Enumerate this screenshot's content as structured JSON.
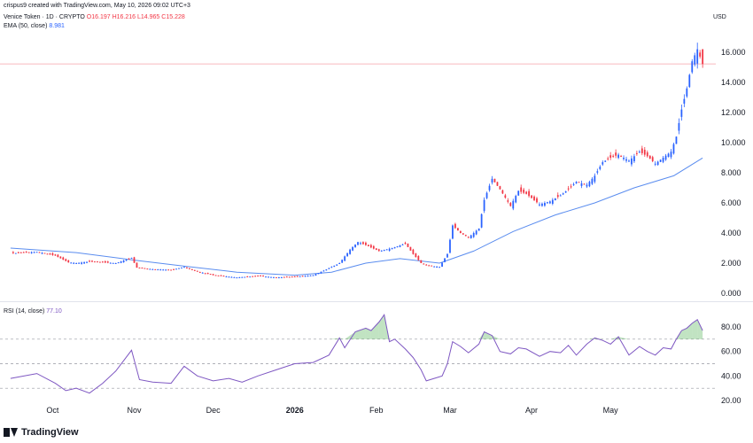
{
  "header": {
    "created_by": "crispus9 created with TradingView.com, May 10, 2026 09:02 UTC+3",
    "symbol_line": "Venice Token · 1D · CRYPTO",
    "o": "O16.197",
    "h": "H16.216",
    "l": "L14.965",
    "c": "C15.228",
    "ema_label": "EMA (50, close)",
    "ema_value": "8.981",
    "rsi_label": "RSI (14, close)",
    "rsi_value": "77.10",
    "currency": "USD"
  },
  "brand": {
    "wordmark": "TradingView"
  },
  "colors": {
    "up": "#2962ff",
    "down": "#f23645",
    "ema": "#5b8def",
    "rsi": "#7e57c2",
    "rsi_fill": "#4caf50",
    "last_price_line": "#f7a1a8"
  },
  "chart_data": [
    {
      "type": "candlestick",
      "title": "Venice Token · 1D · CRYPTO",
      "y_axis_label": "USD",
      "ylim": [
        -0.3,
        17.2
      ],
      "y_ticks": [
        "0.000",
        "2.000",
        "4.000",
        "6.000",
        "8.000",
        "10.000",
        "12.000",
        "14.000",
        "16.000"
      ],
      "x_ticks": [
        "Oct",
        "Nov",
        "Dec",
        "2026",
        "Feb",
        "Mar",
        "Apr",
        "May"
      ],
      "last_price": 15.228,
      "series": [
        {
          "name": "Venice Token",
          "close_path": [
            [
              "2025-09-15",
              2.65
            ],
            [
              "2025-09-25",
              2.75
            ],
            [
              "2025-10-02",
              2.5
            ],
            [
              "2025-10-07",
              2.05
            ],
            [
              "2025-10-10",
              2.0
            ],
            [
              "2025-10-15",
              2.1
            ],
            [
              "2025-10-20",
              2.05
            ],
            [
              "2025-10-25",
              2.0
            ],
            [
              "2025-10-31",
              2.35
            ],
            [
              "2025-11-02",
              1.7
            ],
            [
              "2025-11-08",
              1.6
            ],
            [
              "2025-11-15",
              1.55
            ],
            [
              "2025-11-20",
              1.75
            ],
            [
              "2025-11-25",
              1.45
            ],
            [
              "2025-12-01",
              1.2
            ],
            [
              "2025-12-10",
              1.05
            ],
            [
              "2025-12-18",
              1.15
            ],
            [
              "2025-12-25",
              1.05
            ],
            [
              "2026-01-01",
              1.1
            ],
            [
              "2026-01-08",
              1.2
            ],
            [
              "2026-01-12",
              1.5
            ],
            [
              "2026-01-18",
              2.0
            ],
            [
              "2026-01-22",
              2.9
            ],
            [
              "2026-01-25",
              3.4
            ],
            [
              "2026-01-28",
              3.2
            ],
            [
              "2026-02-02",
              2.8
            ],
            [
              "2026-02-07",
              3.0
            ],
            [
              "2026-02-12",
              3.3
            ],
            [
              "2026-02-15",
              2.6
            ],
            [
              "2026-02-18",
              2.0
            ],
            [
              "2026-02-22",
              1.8
            ],
            [
              "2026-02-25",
              1.75
            ],
            [
              "2026-02-28",
              2.6
            ],
            [
              "2026-03-02",
              4.5
            ],
            [
              "2026-03-05",
              4.0
            ],
            [
              "2026-03-08",
              3.7
            ],
            [
              "2026-03-12",
              4.3
            ],
            [
              "2026-03-14",
              6.2
            ],
            [
              "2026-03-17",
              7.6
            ],
            [
              "2026-03-20",
              6.9
            ],
            [
              "2026-03-24",
              5.8
            ],
            [
              "2026-03-27",
              6.8
            ],
            [
              "2026-03-30",
              6.6
            ],
            [
              "2026-04-04",
              5.9
            ],
            [
              "2026-04-08",
              6.1
            ],
            [
              "2026-04-12",
              6.5
            ],
            [
              "2026-04-15",
              6.9
            ],
            [
              "2026-04-18",
              7.4
            ],
            [
              "2026-04-22",
              7.2
            ],
            [
              "2026-04-25",
              7.8
            ],
            [
              "2026-04-28",
              8.7
            ],
            [
              "2026-05-01",
              9.0
            ],
            [
              "2026-05-04",
              9.2
            ],
            [
              "2026-05-08",
              8.8
            ],
            [
              "2026-05-12",
              9.4
            ],
            [
              "2026-05-15",
              9.1
            ],
            [
              "2026-05-18",
              8.6
            ],
            [
              "2026-05-21",
              9.0
            ],
            [
              "2026-05-24",
              9.4
            ],
            [
              "2026-05-26",
              10.4
            ],
            [
              "2026-05-28",
              12.2
            ],
            [
              "2026-05-30",
              13.6
            ],
            [
              "2026-06-01",
              15.4
            ],
            [
              "2026-06-03",
              16.2
            ],
            [
              "2026-06-05",
              15.228
            ]
          ]
        },
        {
          "name": "EMA (50, close)",
          "values": [
            [
              "2025-09-15",
              3.0
            ],
            [
              "2025-10-10",
              2.7
            ],
            [
              "2025-11-01",
              2.2
            ],
            [
              "2025-11-20",
              1.8
            ],
            [
              "2025-12-10",
              1.4
            ],
            [
              "2026-01-01",
              1.2
            ],
            [
              "2026-01-15",
              1.4
            ],
            [
              "2026-01-28",
              2.0
            ],
            [
              "2026-02-10",
              2.3
            ],
            [
              "2026-02-25",
              2.0
            ],
            [
              "2026-03-10",
              2.8
            ],
            [
              "2026-03-25",
              4.1
            ],
            [
              "2026-04-10",
              5.2
            ],
            [
              "2026-04-25",
              6.0
            ],
            [
              "2026-05-10",
              7.0
            ],
            [
              "2026-05-25",
              7.8
            ],
            [
              "2026-06-05",
              8.981
            ]
          ]
        }
      ]
    },
    {
      "type": "line",
      "title": "RSI (14, close)",
      "ylim": [
        17,
        93
      ],
      "y_ticks": [
        "20.00",
        "40.00",
        "60.00",
        "80.00"
      ],
      "reference_lines": [
        30,
        50,
        70
      ],
      "series": [
        {
          "name": "RSI (14, close)",
          "values": [
            [
              "2025-09-15",
              38
            ],
            [
              "2025-09-25",
              42
            ],
            [
              "2025-10-02",
              34
            ],
            [
              "2025-10-06",
              28
            ],
            [
              "2025-10-10",
              30
            ],
            [
              "2025-10-15",
              26
            ],
            [
              "2025-10-20",
              34
            ],
            [
              "2025-10-25",
              44
            ],
            [
              "2025-10-31",
              61
            ],
            [
              "2025-11-03",
              37
            ],
            [
              "2025-11-08",
              35
            ],
            [
              "2025-11-15",
              34
            ],
            [
              "2025-11-20",
              48
            ],
            [
              "2025-11-25",
              40
            ],
            [
              "2025-12-01",
              36
            ],
            [
              "2025-12-07",
              38
            ],
            [
              "2025-12-12",
              35
            ],
            [
              "2025-12-18",
              40
            ],
            [
              "2025-12-25",
              45
            ],
            [
              "2026-01-01",
              50
            ],
            [
              "2026-01-08",
              51
            ],
            [
              "2026-01-14",
              57
            ],
            [
              "2026-01-18",
              71
            ],
            [
              "2026-01-20",
              63
            ],
            [
              "2026-01-24",
              76
            ],
            [
              "2026-01-28",
              79
            ],
            [
              "2026-01-30",
              77
            ],
            [
              "2026-02-02",
              84
            ],
            [
              "2026-02-04",
              90
            ],
            [
              "2026-02-06",
              68
            ],
            [
              "2026-02-08",
              70
            ],
            [
              "2026-02-12",
              62
            ],
            [
              "2026-02-15",
              55
            ],
            [
              "2026-02-18",
              45
            ],
            [
              "2026-02-20",
              36
            ],
            [
              "2026-02-23",
              38
            ],
            [
              "2026-02-26",
              40
            ],
            [
              "2026-02-28",
              50
            ],
            [
              "2026-03-02",
              68
            ],
            [
              "2026-03-05",
              64
            ],
            [
              "2026-03-08",
              59
            ],
            [
              "2026-03-12",
              66
            ],
            [
              "2026-03-14",
              76
            ],
            [
              "2026-03-17",
              73
            ],
            [
              "2026-03-20",
              60
            ],
            [
              "2026-03-24",
              58
            ],
            [
              "2026-03-27",
              63
            ],
            [
              "2026-03-30",
              62
            ],
            [
              "2026-04-04",
              56
            ],
            [
              "2026-04-08",
              60
            ],
            [
              "2026-04-12",
              59
            ],
            [
              "2026-04-15",
              65
            ],
            [
              "2026-04-18",
              57
            ],
            [
              "2026-04-22",
              66
            ],
            [
              "2026-04-25",
              71
            ],
            [
              "2026-04-28",
              69
            ],
            [
              "2026-05-01",
              66
            ],
            [
              "2026-05-04",
              72
            ],
            [
              "2026-05-08",
              57
            ],
            [
              "2026-05-12",
              64
            ],
            [
              "2026-05-15",
              60
            ],
            [
              "2026-05-18",
              57
            ],
            [
              "2026-05-21",
              63
            ],
            [
              "2026-05-24",
              62
            ],
            [
              "2026-05-26",
              70
            ],
            [
              "2026-05-28",
              77
            ],
            [
              "2026-05-30",
              79
            ],
            [
              "2026-06-01",
              83
            ],
            [
              "2026-06-03",
              86
            ],
            [
              "2026-06-05",
              77.1
            ]
          ]
        }
      ]
    }
  ]
}
